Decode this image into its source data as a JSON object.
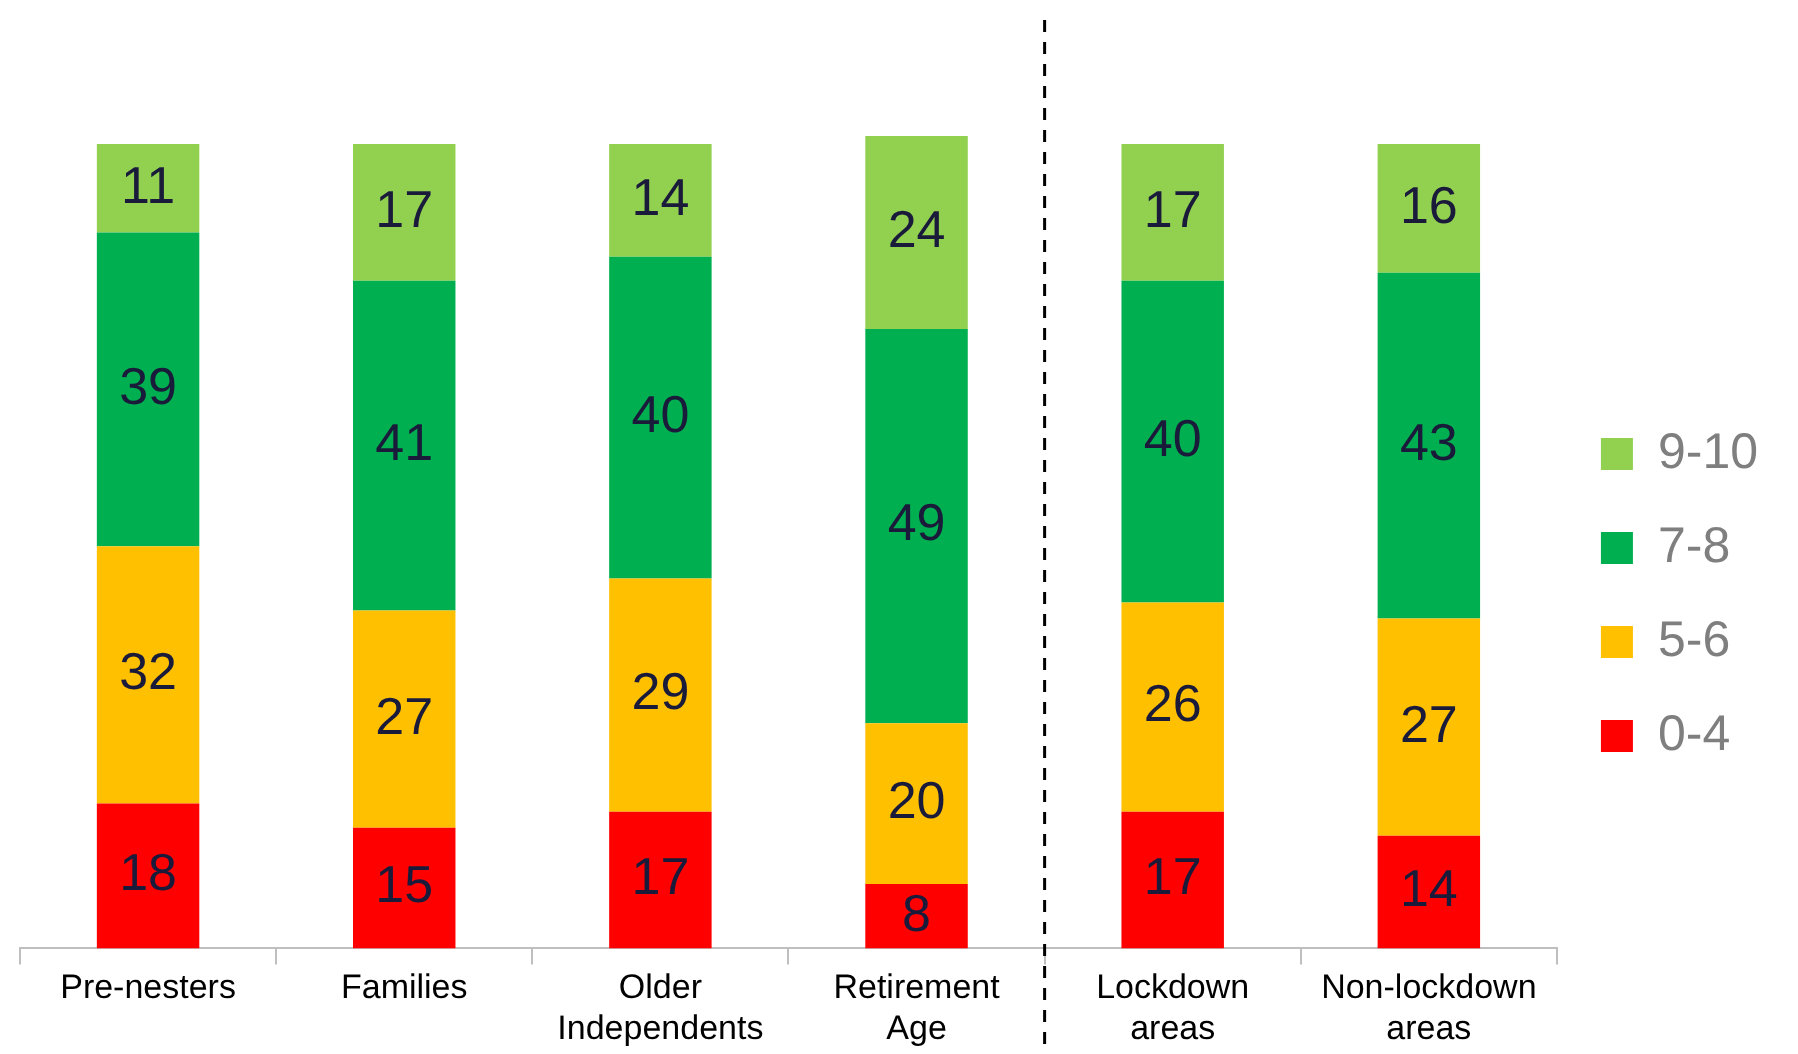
{
  "chart_data": {
    "type": "bar",
    "stacked": true,
    "data_labels": true,
    "grid": false,
    "legend": "right",
    "categories": [
      "Pre-nesters",
      "Families",
      "Older Independents",
      "Retirement Age",
      "Lockdown areas",
      "Non-lockdown areas"
    ],
    "series": [
      {
        "name": "0-4",
        "color": "#ff0000",
        "values": [
          18,
          15,
          17,
          8,
          17,
          14
        ]
      },
      {
        "name": "5-6",
        "color": "#ffc000",
        "values": [
          32,
          27,
          29,
          20,
          26,
          27
        ]
      },
      {
        "name": "7-8",
        "color": "#00b050",
        "values": [
          39,
          41,
          40,
          49,
          40,
          43
        ]
      },
      {
        "name": "9-10",
        "color": "#92d050",
        "values": [
          11,
          17,
          14,
          24,
          17,
          16
        ]
      }
    ]
  }
}
